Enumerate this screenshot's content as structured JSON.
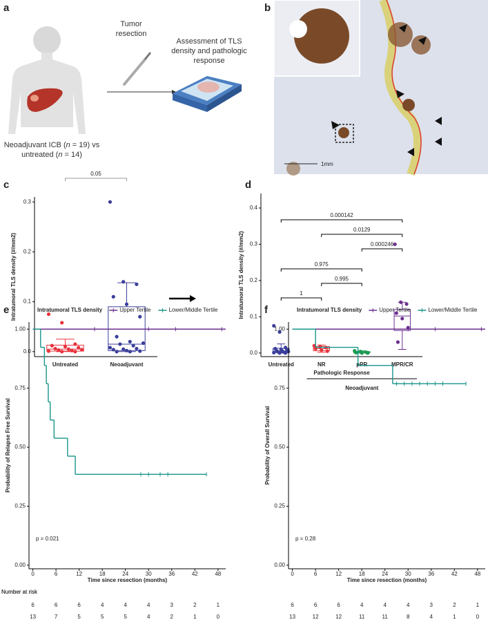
{
  "panel_labels": [
    "a",
    "b",
    "c",
    "d",
    "e",
    "f"
  ],
  "panel_a": {
    "step1": [
      "Tumor",
      "resection"
    ],
    "step2": [
      "Assessment of TLS",
      "density and pathologic",
      "response"
    ],
    "caption": [
      [
        "Neoadjuvant ICB (",
        "n",
        " = 19) vs"
      ],
      [
        "untreated  (",
        "n",
        " = 14)"
      ]
    ]
  },
  "panel_b": {
    "scale": "1mm"
  },
  "chart_data": [
    {
      "type": "box",
      "ylabel": "Intratumoral TLS density (#/mm2)",
      "categories": [
        "Untreated",
        "Neoadjuvant"
      ],
      "colors": [
        "#e8323c",
        "#3b3f9a"
      ],
      "points": [
        [
          0.075,
          0.058,
          0.015,
          0.012,
          0.01,
          0.008,
          0.006,
          0.005,
          0.004,
          0.003,
          0.002,
          0.001,
          0,
          0
        ],
        [
          0.3,
          0.14,
          0.135,
          0.11,
          0.095,
          0.07,
          0.03,
          0.02,
          0.017,
          0.015,
          0.012,
          0.008,
          0.005,
          0.006,
          0.004,
          0.002,
          0.001,
          0,
          0
        ]
      ],
      "boxes": [
        {
          "min": 0,
          "q1": 0.001,
          "median": 0.005,
          "q3": 0.013,
          "max": 0.025
        },
        {
          "min": 0,
          "q1": 0.002,
          "median": 0.015,
          "q3": 0.09,
          "max": 0.138
        }
      ],
      "ylim": [
        -0.01,
        0.31
      ],
      "yticks": [
        {
          "value": 0,
          "label": "0.0"
        },
        0.1,
        0.2,
        0.3
      ],
      "comparisons": [
        {
          "groups": [
            0,
            1
          ],
          "label": "0.05"
        }
      ]
    },
    {
      "type": "box",
      "ylabel": "Intratumoral TLS density (#/mm2)",
      "xlabel": "Pathologic Response",
      "group_label": "Neoadjuvant",
      "group": [
        1,
        3
      ],
      "categories": [
        "Untreated",
        "NR",
        "pPR",
        "MPR/CR"
      ],
      "colors": [
        "#3b3f9a",
        "#e8323c",
        "#1a9a50",
        "#6b2f8f"
      ],
      "points": [
        [
          0.075,
          0.058,
          0.015,
          0.012,
          0.01,
          0.008,
          0.006,
          0.005,
          0.004,
          0.003,
          0.002,
          0.001,
          0,
          0
        ],
        [
          0.02,
          0.017,
          0.015,
          0.012,
          0.008,
          0.005
        ],
        [
          0.006,
          0.004,
          0.002,
          0.001,
          0,
          0
        ],
        [
          0.3,
          0.14,
          0.135,
          0.11,
          0.095,
          0.07,
          0.03
        ]
      ],
      "boxes": [
        {
          "min": 0,
          "q1": 0.001,
          "median": 0.005,
          "q3": 0.013,
          "max": 0.025
        },
        {
          "min": 0.002,
          "q1": 0.006,
          "median": 0.012,
          "q3": 0.018,
          "max": 0.022
        },
        {
          "min": 0,
          "q1": 0,
          "median": 0.002,
          "q3": 0.004,
          "max": 0.006
        },
        {
          "min": 0.01,
          "q1": 0.062,
          "median": 0.102,
          "q3": 0.12,
          "max": 0.14
        }
      ],
      "ylim": [
        -0.01,
        0.44
      ],
      "yticks": [
        {
          "value": 0,
          "label": "0.0"
        },
        0.1,
        0.2,
        0.3,
        0.4
      ],
      "comparisons": [
        {
          "groups": [
            0,
            3
          ],
          "label": "0.000142"
        },
        {
          "groups": [
            1,
            3
          ],
          "label": "0.0129"
        },
        {
          "groups": [
            2,
            3
          ],
          "label": "0.000246"
        },
        {
          "groups": [
            0,
            2
          ],
          "label": "0.975"
        },
        {
          "groups": [
            1,
            2
          ],
          "label": "0.995"
        },
        {
          "groups": [
            0,
            1
          ],
          "label": "1"
        }
      ]
    },
    {
      "type": "km",
      "ylabel": "Probability of Relapse Free Survival",
      "xlabel": "Time since resection (months)",
      "legend_title": "Intratumoral TLS density",
      "annotation": "p = 0.021",
      "xlim": [
        -1,
        50
      ],
      "xticks": [
        0,
        6,
        12,
        18,
        24,
        30,
        36,
        42,
        48
      ],
      "ylim": [
        -0.015,
        1.03
      ],
      "yticks": [
        {
          "value": 0,
          "label": "0.00"
        },
        0.25,
        {
          "value": 0.5,
          "label": "0.50"
        },
        0.75,
        {
          "value": 1,
          "label": "1.00"
        }
      ],
      "series": [
        {
          "name": "Upper Tertile",
          "color": "#6b2f8f",
          "x": [
            0,
            50
          ],
          "values": [
            1,
            1
          ],
          "censored": {
            "x": [
              16,
              30,
              37,
              49
            ],
            "values": [
              1,
              1,
              1,
              1
            ]
          }
        },
        {
          "name": "Lower/Middle Tertile",
          "color": "#16958a",
          "x": [
            0,
            2,
            3,
            3.5,
            4,
            4.5,
            5.5,
            9,
            11,
            45
          ],
          "values": [
            1,
            0.923,
            0.846,
            0.769,
            0.692,
            0.615,
            0.538,
            0.462,
            0.385,
            0.385
          ],
          "censored": {
            "x": [
              28,
              30,
              33,
              35,
              45
            ],
            "values": [
              0.385,
              0.385,
              0.385,
              0.385,
              0.385
            ]
          }
        }
      ],
      "risk_table": {
        "title": "Number at risk",
        "rows": [
          [
            6,
            6,
            6,
            4,
            4,
            4,
            3,
            2,
            1
          ],
          [
            13,
            7,
            5,
            5,
            5,
            4,
            2,
            1,
            0
          ]
        ]
      }
    },
    {
      "type": "km",
      "ylabel": "Probability of Overall Survival",
      "xlabel": "Time since resection (months)",
      "legend_title": "Intratumoral TLS density",
      "annotation": "p = 0.28",
      "xlim": [
        -1,
        50
      ],
      "xticks": [
        0,
        6,
        12,
        18,
        24,
        30,
        36,
        42,
        48
      ],
      "ylim": [
        -0.015,
        1.03
      ],
      "yticks": [
        {
          "value": 0,
          "label": "0.00"
        },
        0.25,
        {
          "value": 0.5,
          "label": "0.50"
        },
        0.75,
        {
          "value": 1,
          "label": "1.00"
        }
      ],
      "series": [
        {
          "name": "Upper Tertile",
          "color": "#6b2f8f",
          "x": [
            0,
            50
          ],
          "values": [
            1,
            1
          ],
          "censored": {
            "x": [
              30,
              37,
              49
            ],
            "values": [
              1,
              1,
              1
            ]
          }
        },
        {
          "name": "Lower/Middle Tertile",
          "color": "#16958a",
          "x": [
            0,
            6,
            17,
            26,
            45
          ],
          "values": [
            1,
            0.923,
            0.846,
            0.769,
            0.769
          ],
          "censored": {
            "x": [
              27,
              29,
              31,
              33,
              35,
              37,
              39,
              45
            ],
            "values": [
              0.769,
              0.769,
              0.769,
              0.769,
              0.769,
              0.769,
              0.769,
              0.769
            ]
          }
        }
      ],
      "risk_table": {
        "title": "Number at risk",
        "rows": [
          [
            6,
            6,
            6,
            4,
            4,
            4,
            3,
            2,
            1
          ],
          [
            13,
            12,
            12,
            11,
            11,
            8,
            4,
            1,
            0
          ]
        ]
      }
    }
  ]
}
